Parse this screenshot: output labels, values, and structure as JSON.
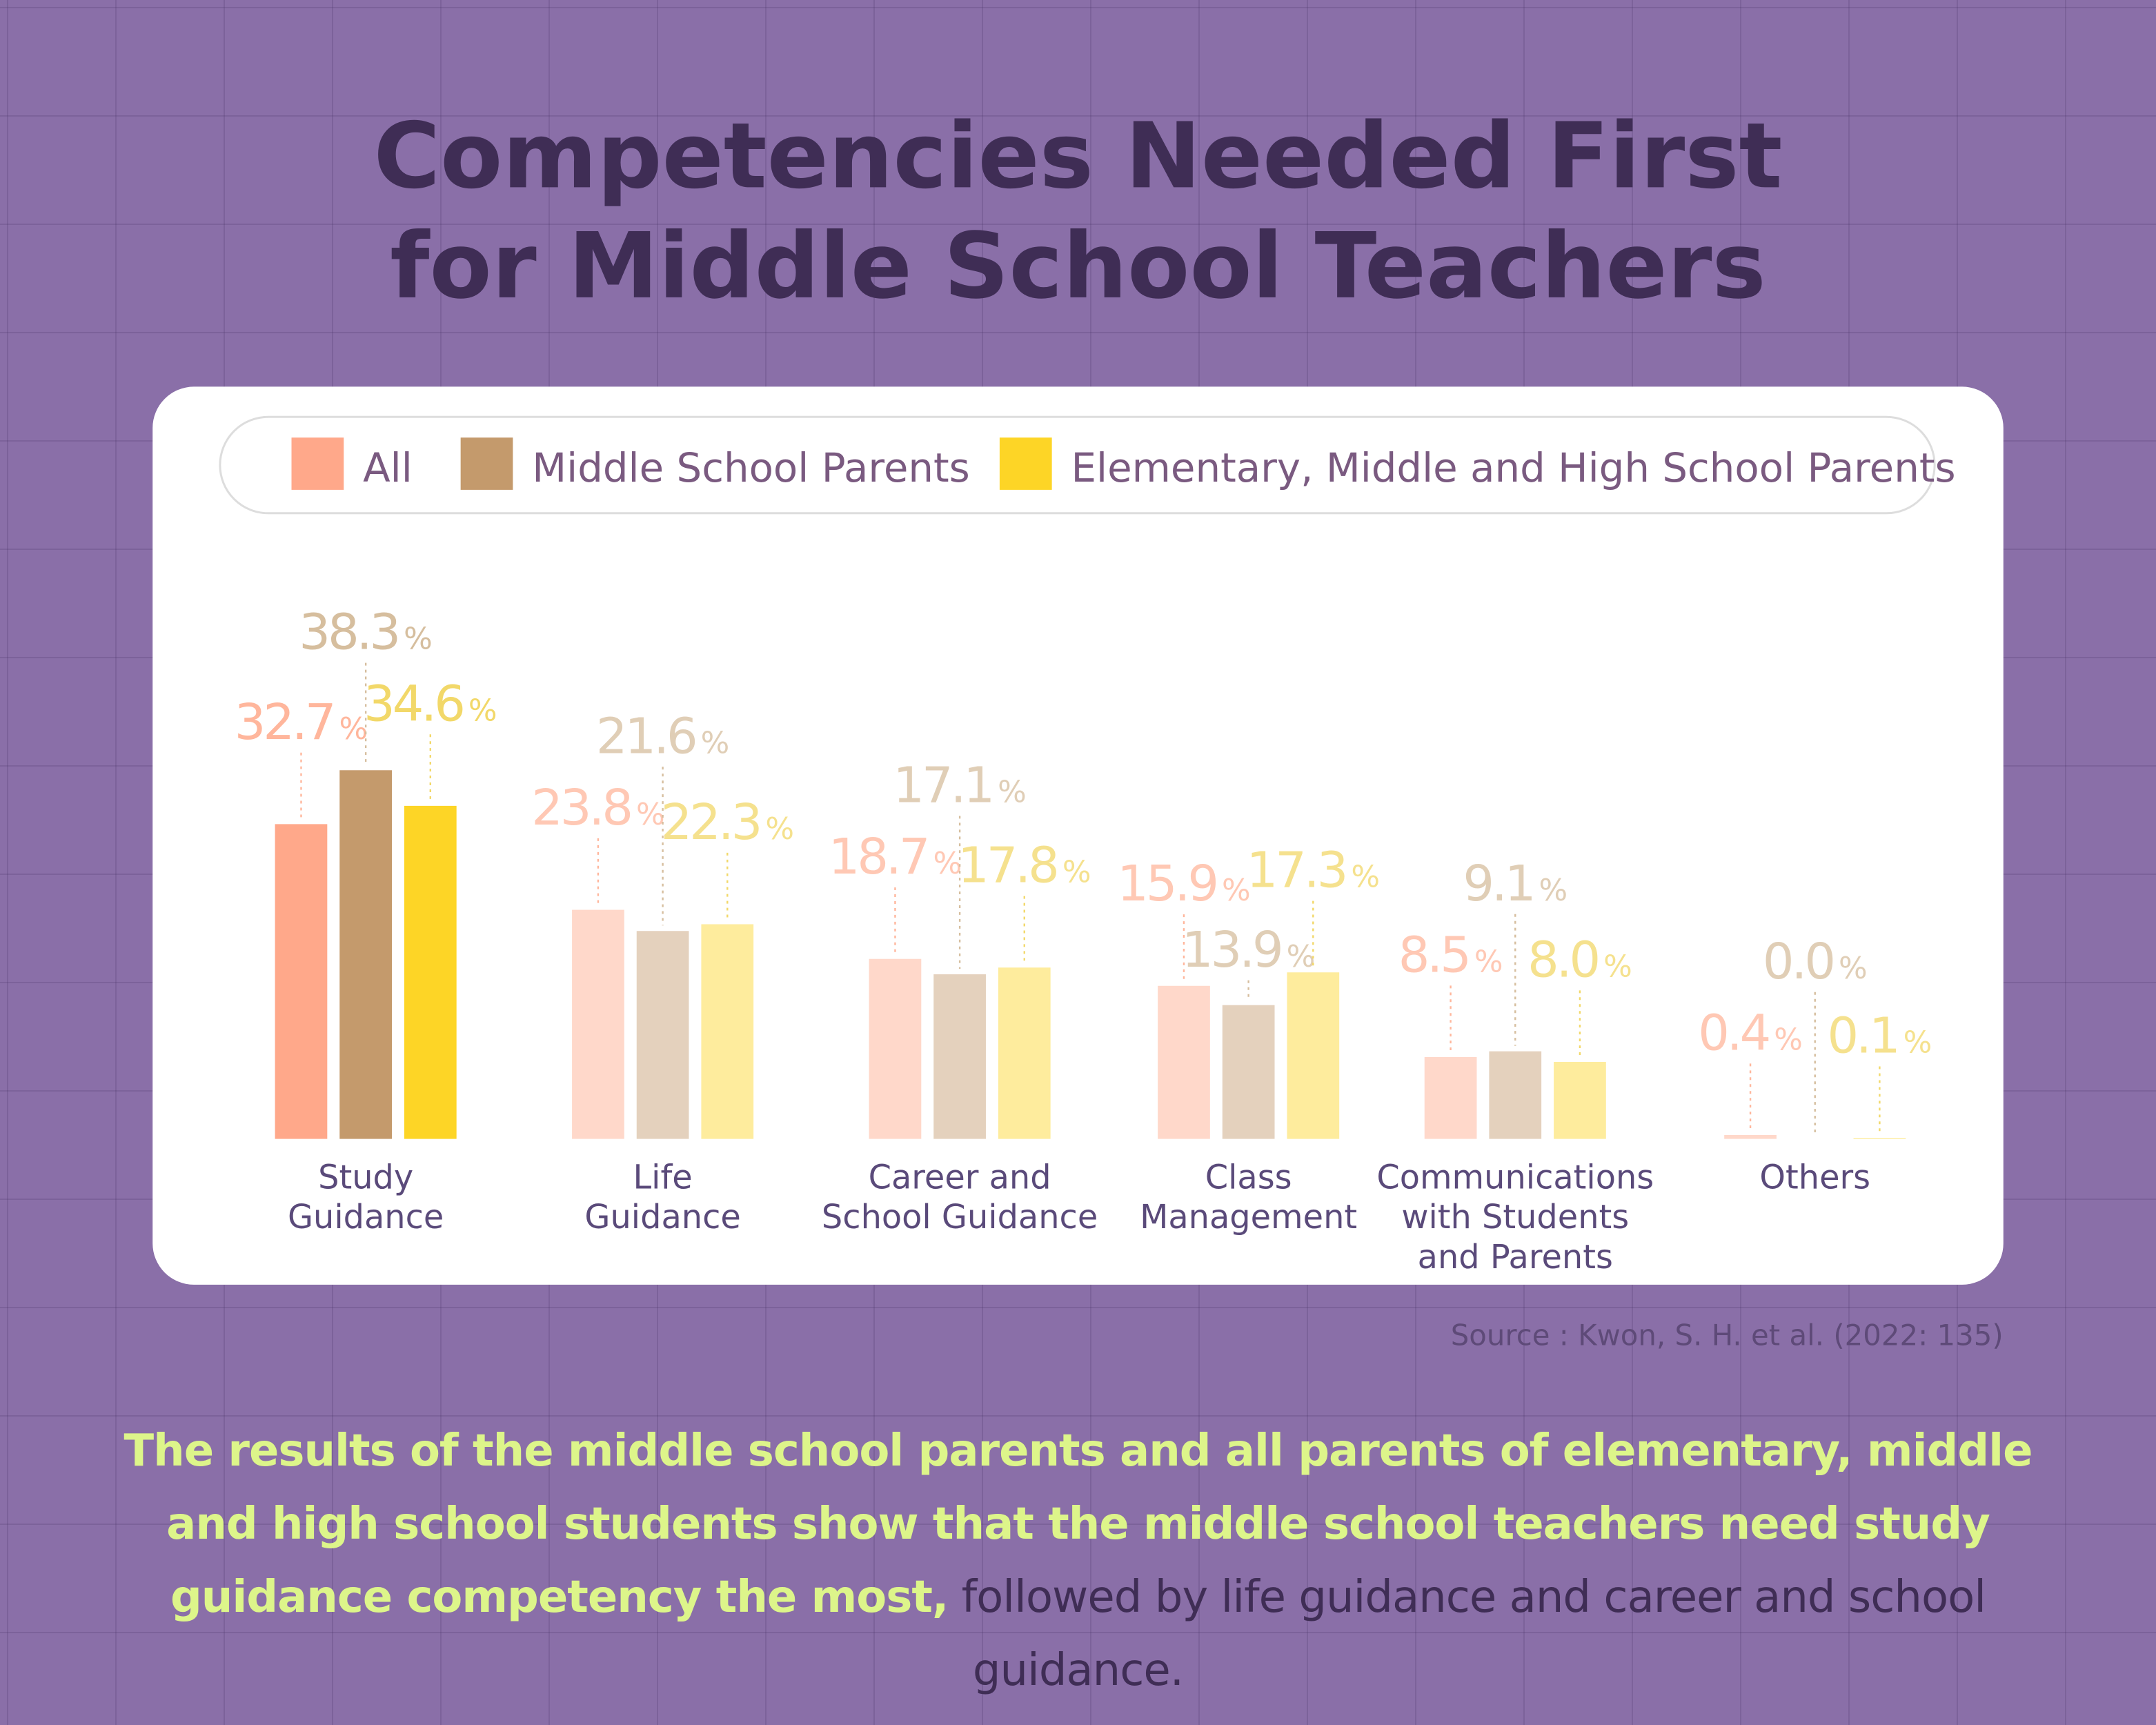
{
  "title": [
    "Competencies Needed First",
    "for Middle School Teachers"
  ],
  "chart_data": {
    "type": "bar",
    "categories": [
      "Study\nGuidance",
      "Life\nGuidance",
      "Career and\nSchool Guidance",
      "Class\nManagement",
      "Communications\nwith Students\nand Parents",
      "Others"
    ],
    "series": [
      {
        "name": "All",
        "color": "#FFA88A",
        "values": [
          32.7,
          23.8,
          18.7,
          15.9,
          8.5,
          0.4
        ],
        "value_labels": [
          "32.7%",
          "23.8%",
          "18.7%",
          "15.9%",
          "8.5%",
          "0.4%"
        ]
      },
      {
        "name": "Middle School Parents",
        "color": "#C49A6C",
        "values": [
          38.3,
          21.6,
          17.1,
          13.9,
          9.1,
          0.0
        ],
        "value_labels": [
          "38.3%",
          "21.6%",
          "17.1%",
          "13.9%",
          "9.1%",
          "0.0%"
        ]
      },
      {
        "name": "Elementary, Middle and High School Parents",
        "color": "#FDD526",
        "values": [
          34.6,
          22.3,
          17.8,
          17.3,
          8.0,
          0.1
        ],
        "value_labels": [
          "34.6%",
          "22.3%",
          "17.8%",
          "17.3%",
          "8.0%",
          "0.1%"
        ]
      }
    ],
    "ylim": [
      0,
      40
    ]
  },
  "source": "Source : Kwon, S. H. et al. (2022: 135)",
  "summary": {
    "highlight": "The results of the middle school parents and all parents of elementary, middle and high school students show that the middle school teachers need study guidance competency the most,",
    "rest": " followed by life guidance and career and school guidance."
  }
}
